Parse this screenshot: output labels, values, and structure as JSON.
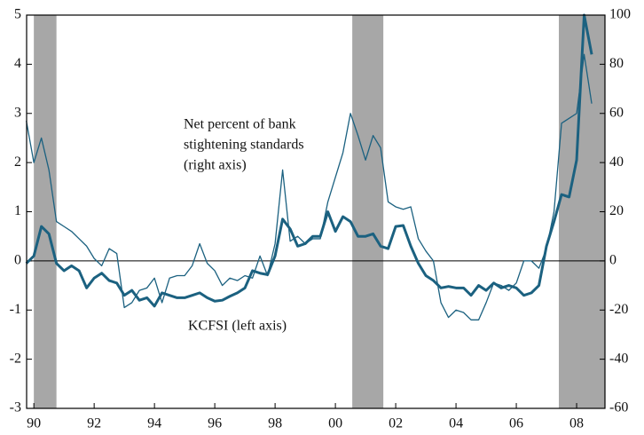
{
  "chart_data": {
    "type": "line",
    "x": [
      1989.75,
      1990,
      1990.25,
      1990.5,
      1990.75,
      1991,
      1991.25,
      1991.5,
      1991.75,
      1992,
      1992.25,
      1992.5,
      1992.75,
      1993,
      1993.25,
      1993.5,
      1993.75,
      1994,
      1994.25,
      1994.5,
      1994.75,
      1995,
      1995.25,
      1995.5,
      1995.75,
      1996,
      1996.25,
      1996.5,
      1996.75,
      1997,
      1997.25,
      1997.5,
      1997.75,
      1998,
      1998.25,
      1998.5,
      1998.75,
      1999,
      1999.25,
      1999.5,
      1999.75,
      2000,
      2000.25,
      2000.5,
      2000.75,
      2001,
      2001.25,
      2001.5,
      2001.75,
      2002,
      2002.25,
      2002.5,
      2002.75,
      2003,
      2003.25,
      2003.5,
      2003.75,
      2004,
      2004.25,
      2004.5,
      2004.75,
      2005,
      2005.25,
      2005.5,
      2005.75,
      2006,
      2006.25,
      2006.5,
      2006.75,
      2007,
      2007.25,
      2007.5,
      2007.75,
      2008,
      2008.25,
      2008.5
    ],
    "series": [
      {
        "color": "#1b6180",
        "width": 3,
        "axis": "y",
        "values": [
          -0.05,
          0.1,
          0.7,
          0.55,
          -0.05,
          -0.2,
          -0.1,
          -0.2,
          -0.55,
          -0.35,
          -0.25,
          -0.4,
          -0.45,
          -0.7,
          -0.6,
          -0.8,
          -0.75,
          -0.92,
          -0.65,
          -0.7,
          -0.75,
          -0.75,
          -0.7,
          -0.65,
          -0.75,
          -0.82,
          -0.8,
          -0.72,
          -0.65,
          -0.55,
          -0.2,
          -0.25,
          -0.28,
          0.1,
          0.85,
          0.65,
          0.3,
          0.35,
          0.5,
          0.5,
          1.0,
          0.6,
          0.9,
          0.8,
          0.5,
          0.5,
          0.55,
          0.3,
          0.25,
          0.7,
          0.72,
          0.3,
          -0.05,
          -0.3,
          -0.4,
          -0.55,
          -0.52,
          -0.55,
          -0.55,
          -0.7,
          -0.5,
          -0.6,
          -0.45,
          -0.55,
          -0.5,
          -0.55,
          -0.7,
          -0.65,
          -0.5,
          0.3,
          0.8,
          1.35,
          1.3,
          2.05,
          5.0,
          4.2
        ]
      },
      {
        "color": "#1b6180",
        "width": 1.3,
        "axis": "y2",
        "values": [
          57,
          40,
          50,
          37,
          16,
          14,
          12,
          9,
          6,
          1,
          -2,
          5,
          3,
          -19,
          -17,
          -12,
          -11,
          -7,
          -17,
          -7,
          -6,
          -6,
          -2,
          7,
          -1,
          -4,
          -10,
          -7,
          -8,
          -6,
          -7,
          2,
          -6,
          7,
          37,
          8,
          10,
          7,
          9,
          9,
          24,
          34,
          44,
          60,
          51,
          41,
          51,
          46,
          24,
          22,
          21,
          22,
          9,
          4,
          0,
          -17,
          -23,
          -20,
          -21,
          -24,
          -24,
          -17,
          -9,
          -10,
          -12,
          -9,
          0,
          0,
          -3,
          5,
          20,
          56,
          58,
          60,
          84,
          64
        ]
      }
    ],
    "annotations": [
      {
        "lines": [
          "Net percent of bank",
          "stightening standards",
          "(right axis)"
        ]
      },
      {
        "lines": [
          "KCFSI (left axis)"
        ]
      }
    ],
    "recessions": [
      [
        1990.0,
        1990.75
      ],
      [
        2000.56,
        2001.59
      ],
      [
        2007.41,
        2008.94
      ]
    ],
    "recession_color": "#a7a7a7",
    "xlim": [
      1989.76,
      2008.94
    ],
    "xticks": [
      {
        "value": 1990,
        "label": "90"
      },
      {
        "value": 1992,
        "label": "92"
      },
      {
        "value": 1994,
        "label": "94"
      },
      {
        "value": 1996,
        "label": "96"
      },
      {
        "value": 1998,
        "label": "98"
      },
      {
        "value": 2000,
        "label": "00"
      },
      {
        "value": 2002,
        "label": "02"
      },
      {
        "value": 2004,
        "label": "04"
      },
      {
        "value": 2006,
        "label": "06"
      },
      {
        "value": 2008,
        "label": "08"
      }
    ],
    "ylim": [
      -3,
      5
    ],
    "yticks": [
      -3,
      -2,
      -1,
      0,
      1,
      2,
      3,
      4,
      5
    ],
    "y2lim": [
      -60,
      100
    ],
    "y2ticks": [
      -60,
      -40,
      -20,
      0,
      20,
      40,
      60,
      80,
      100
    ]
  }
}
